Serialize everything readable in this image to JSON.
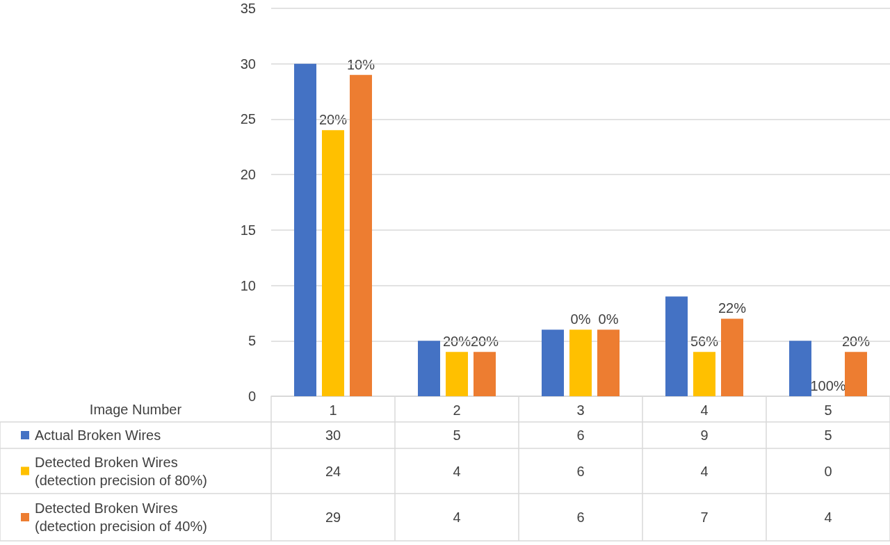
{
  "chart_data": {
    "type": "bar",
    "xlabel": "Image Number",
    "categories": [
      "1",
      "2",
      "3",
      "4",
      "5"
    ],
    "series": [
      {
        "name": "Actual Broken Wires",
        "color": "#4472c4",
        "values": [
          30,
          5,
          6,
          9,
          5
        ]
      },
      {
        "name": "Detected Broken Wires (detection precision of 80%)",
        "color": "#ffc000",
        "values": [
          24,
          4,
          6,
          4,
          0
        ]
      },
      {
        "name": "Detected Broken Wires (detection precision of 40%)",
        "color": "#ed7d31",
        "values": [
          29,
          4,
          6,
          7,
          4
        ]
      }
    ],
    "annotations": [
      "20%",
      "10%",
      "20%",
      "20%",
      "0%",
      "0%",
      "56%",
      "22%",
      "100%",
      "20%"
    ],
    "ylim": [
      0,
      35
    ],
    "yticks": [
      0,
      5,
      10,
      15,
      20,
      25,
      30,
      35
    ],
    "grid": "y",
    "legend": "bottom",
    "data_labels": true
  }
}
